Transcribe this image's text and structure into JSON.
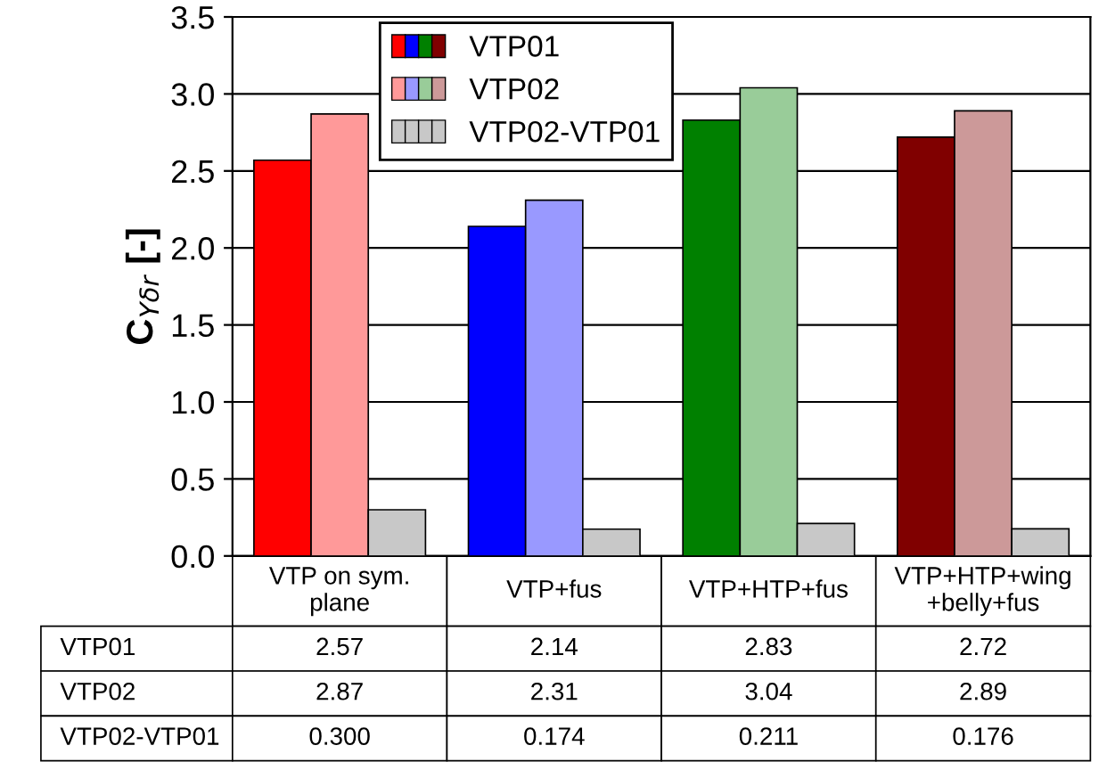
{
  "chart_data": {
    "type": "bar",
    "ylabel": "C$_{Yδr}$ [-]",
    "categories": [
      "VTP on sym.\nplane",
      "VTP+fus",
      "VTP+HTP+fus",
      "VTP+HTP+wing\n+belly+fus"
    ],
    "series": [
      {
        "name": "VTP01",
        "colors": [
          "#ff0000",
          "#0000ff",
          "#008000",
          "#800000"
        ],
        "values": [
          2.57,
          2.14,
          2.83,
          2.72
        ],
        "value_labels": [
          "2.57",
          "2.14",
          "2.83",
          "2.72"
        ]
      },
      {
        "name": "VTP02",
        "colors": [
          "#ff9999",
          "#9999ff",
          "#99cc99",
          "#cc9999"
        ],
        "values": [
          2.87,
          2.31,
          3.04,
          2.89
        ],
        "value_labels": [
          "2.87",
          "2.31",
          "3.04",
          "2.89"
        ]
      },
      {
        "name": "VTP02-VTP01",
        "colors": [
          "#c8c8c8",
          "#c8c8c8",
          "#c8c8c8",
          "#c8c8c8"
        ],
        "values": [
          0.3,
          0.174,
          0.211,
          0.176
        ],
        "value_labels": [
          "0.300",
          "0.174",
          "0.211",
          "0.176"
        ]
      }
    ],
    "ylim": [
      0,
      3.5
    ],
    "yticks": [
      {
        "value": 0,
        "label": "0.0"
      },
      {
        "value": 0.5,
        "label": "0.5"
      },
      {
        "value": 1,
        "label": "1.0"
      },
      {
        "value": 1.5,
        "label": "1.5"
      },
      {
        "value": 2,
        "label": "2.0"
      },
      {
        "value": 2.5,
        "label": "2.5"
      },
      {
        "value": 3,
        "label": "3.0"
      },
      {
        "value": 3.5,
        "label": "3.5"
      }
    ],
    "grid": "y",
    "legend": "top left"
  }
}
